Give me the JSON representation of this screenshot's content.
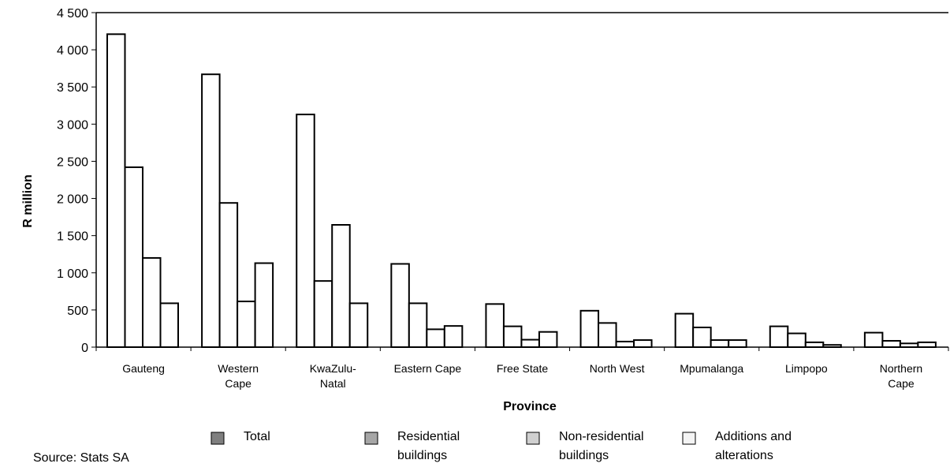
{
  "chart_data": {
    "type": "bar",
    "xlabel": "Province",
    "ylabel": "R million",
    "ylim": [
      0,
      4500
    ],
    "yticks": [
      "0",
      "500",
      "1 000",
      "1 500",
      "2 000",
      "2 500",
      "3 000",
      "3 500",
      "4 000",
      "4 500"
    ],
    "ytick_values": [
      0,
      500,
      1000,
      1500,
      2000,
      2500,
      3000,
      3500,
      4000,
      4500
    ],
    "categories": [
      [
        "Gauteng"
      ],
      [
        "Western",
        "Cape"
      ],
      [
        "KwaZulu-",
        "Natal"
      ],
      [
        "Eastern Cape"
      ],
      [
        "Free State"
      ],
      [
        "North West"
      ],
      [
        "Mpumalanga"
      ],
      [
        "Limpopo"
      ],
      [
        "Northern",
        "Cape"
      ]
    ],
    "series": [
      {
        "name": "Total",
        "legend_lines": [
          "Total"
        ],
        "swatch": "#7f7f7f",
        "values": [
          4210,
          3670,
          3130,
          1120,
          580,
          490,
          450,
          280,
          195
        ]
      },
      {
        "name": "Residential buildings",
        "legend_lines": [
          "Residential",
          "buildings"
        ],
        "swatch": "#a6a6a6",
        "values": [
          2420,
          1940,
          890,
          590,
          280,
          325,
          265,
          185,
          85
        ]
      },
      {
        "name": "Non-residential buildings",
        "legend_lines": [
          "Non-residential",
          "buildings"
        ],
        "swatch": "#d0d0d0",
        "values": [
          1200,
          615,
          1645,
          240,
          100,
          75,
          95,
          65,
          50
        ]
      },
      {
        "name": "Additions and alterations",
        "legend_lines": [
          "Additions and",
          "alterations"
        ],
        "swatch": "#f4f4f4",
        "values": [
          590,
          1130,
          590,
          285,
          205,
          95,
          95,
          30,
          65
        ]
      }
    ],
    "legend_position": "bottom",
    "grid": false
  },
  "source": "Source: Stats SA"
}
